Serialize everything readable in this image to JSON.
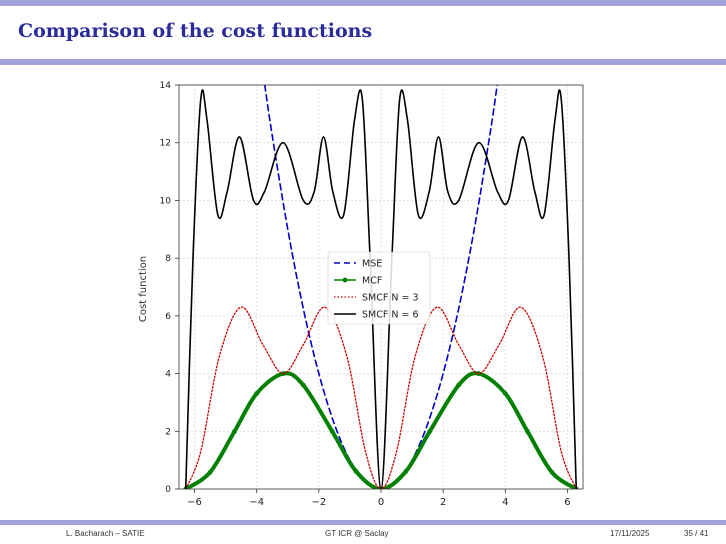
{
  "slide": {
    "title": "Comparison of the cost functions"
  },
  "footer": {
    "author": "L. Bacharach – SATIE",
    "event": "GT ICR @ Saclay",
    "date": "17/11/2025",
    "page": "35 / 41"
  },
  "colors": {
    "accent_bar": "#a3a3db",
    "title_text": "#2b2b9a",
    "mse": "#0000cc",
    "mcf": "#008000",
    "smcf3": "#cc0000",
    "smcf6": "#000000"
  },
  "chart_data": {
    "type": "line",
    "title": "",
    "xlabel": "",
    "ylabel": "Cost function",
    "xlim": [
      -6.5,
      6.5
    ],
    "ylim": [
      0,
      14
    ],
    "xticks": [
      "−6",
      "−4",
      "−2",
      "0",
      "2",
      "4",
      "6"
    ],
    "xtick_values": [
      -6,
      -4,
      -2,
      0,
      2,
      4,
      6
    ],
    "yticks": [
      "0",
      "2",
      "4",
      "6",
      "8",
      "10",
      "12",
      "14"
    ],
    "ytick_values": [
      0,
      2,
      4,
      6,
      8,
      10,
      12,
      14
    ],
    "grid": true,
    "legend_position": "center",
    "series": [
      {
        "name": "MSE",
        "style": "dashed",
        "color": "#0000cc",
        "x": [
          -3.74,
          -3.5,
          -3.0,
          -2.5,
          -2.0,
          -1.5,
          -1.0,
          -0.5,
          0.0,
          0.5,
          1.0,
          1.5,
          2.0,
          2.5,
          3.0,
          3.5,
          3.74
        ],
        "y": [
          14.0,
          12.25,
          9.0,
          6.25,
          4.0,
          2.25,
          1.0,
          0.25,
          0.0,
          0.25,
          1.0,
          2.25,
          4.0,
          6.25,
          9.0,
          12.25,
          14.0
        ]
      },
      {
        "name": "MCF",
        "style": "solid-markers",
        "color": "#008000",
        "x": [
          -6.283,
          -5.5,
          -4.712,
          -4.0,
          -3.142,
          -2.5,
          -1.571,
          -0.8,
          0.0,
          0.8,
          1.571,
          2.5,
          3.142,
          4.0,
          4.712,
          5.5,
          6.283
        ],
        "y": [
          0.0,
          0.58,
          2.0,
          3.31,
          4.0,
          3.6,
          2.0,
          0.61,
          0.0,
          0.61,
          2.0,
          3.6,
          4.0,
          3.31,
          2.0,
          0.58,
          0.0
        ]
      },
      {
        "name": "SMCF N = 3",
        "style": "dotted",
        "color": "#cc0000",
        "x": [
          -6.283,
          -5.8,
          -5.2,
          -4.5,
          -3.8,
          -3.142,
          -2.5,
          -1.8,
          -1.1,
          -0.5,
          0.0,
          0.5,
          1.1,
          1.8,
          2.5,
          3.142,
          3.8,
          4.5,
          5.2,
          5.8,
          6.283
        ],
        "y": [
          0.0,
          1.3,
          4.6,
          6.3,
          5.0,
          4.0,
          5.0,
          6.3,
          4.6,
          1.3,
          0.0,
          1.3,
          4.6,
          6.3,
          5.0,
          4.0,
          5.0,
          6.3,
          4.6,
          1.3,
          0.0
        ]
      },
      {
        "name": "SMCF N = 6",
        "style": "solid",
        "color": "#000000",
        "x": [
          -6.283,
          -6.05,
          -5.8,
          -5.6,
          -5.25,
          -4.95,
          -4.55,
          -4.1,
          -3.75,
          -3.142,
          -2.5,
          -2.15,
          -1.85,
          -1.55,
          -1.2,
          -0.85,
          -0.6,
          -0.35,
          0.0,
          0.35,
          0.6,
          0.85,
          1.2,
          1.55,
          1.85,
          2.15,
          2.5,
          3.142,
          3.75,
          4.1,
          4.55,
          4.95,
          5.25,
          5.6,
          5.8,
          6.05,
          6.283
        ],
        "y": [
          0.0,
          8.0,
          13.5,
          12.8,
          9.5,
          10.3,
          12.2,
          10.0,
          10.3,
          12.0,
          10.0,
          10.3,
          12.2,
          10.3,
          9.5,
          12.8,
          13.5,
          8.0,
          0.0,
          8.0,
          13.5,
          12.8,
          9.5,
          10.3,
          12.2,
          10.3,
          10.0,
          12.0,
          10.3,
          10.0,
          12.2,
          10.3,
          9.5,
          12.8,
          13.5,
          8.0,
          0.0
        ]
      }
    ]
  }
}
